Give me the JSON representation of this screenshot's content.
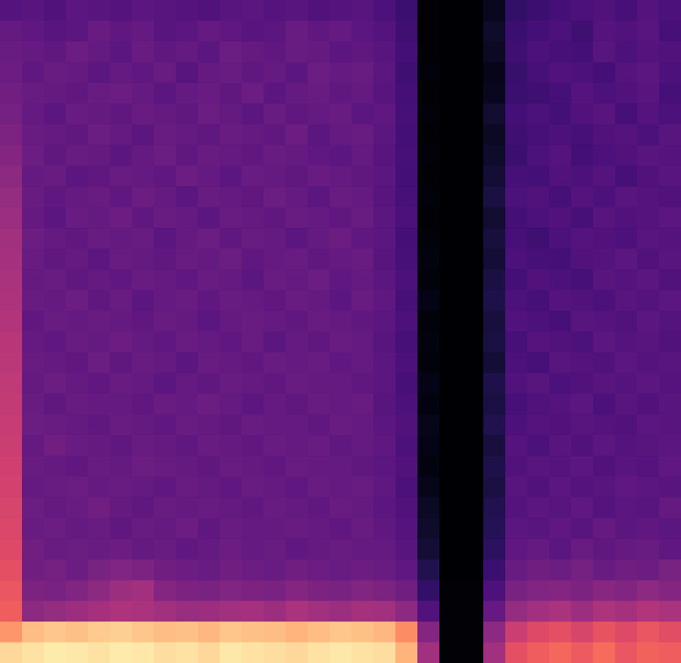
{
  "chart_data": {
    "type": "heatmap",
    "tick_labels": false,
    "color_range": [
      0,
      100
    ],
    "cells": [
      [
        26,
        27,
        25,
        28,
        27,
        26,
        28,
        27,
        26,
        25,
        27,
        28,
        26,
        27,
        25,
        26,
        27,
        24,
        20,
        1,
        0,
        0,
        6,
        18,
        20,
        22,
        24,
        25,
        23,
        26,
        24
      ],
      [
        30,
        29,
        27,
        28,
        31,
        29,
        30,
        27,
        28,
        30,
        29,
        27,
        28,
        31,
        29,
        30,
        28,
        26,
        21,
        1,
        0,
        0,
        8,
        20,
        22,
        24,
        21,
        26,
        25,
        27,
        23
      ],
      [
        31,
        30,
        29,
        32,
        30,
        28,
        31,
        29,
        30,
        28,
        32,
        30,
        29,
        31,
        30,
        28,
        29,
        27,
        22,
        1,
        0,
        0,
        7,
        21,
        24,
        23,
        22,
        27,
        24,
        26,
        25
      ],
      [
        32,
        29,
        31,
        30,
        28,
        30,
        29,
        31,
        27,
        30,
        31,
        29,
        30,
        28,
        32,
        30,
        31,
        28,
        21,
        2,
        0,
        0,
        5,
        19,
        23,
        25,
        24,
        22,
        26,
        28,
        24
      ],
      [
        33,
        31,
        30,
        29,
        31,
        32,
        30,
        28,
        30,
        31,
        29,
        32,
        28,
        30,
        31,
        29,
        30,
        27,
        22,
        1,
        0,
        0,
        6,
        20,
        21,
        23,
        26,
        24,
        25,
        27,
        23
      ],
      [
        34,
        30,
        28,
        31,
        30,
        29,
        31,
        30,
        29,
        32,
        30,
        28,
        31,
        29,
        30,
        31,
        28,
        29,
        23,
        2,
        0,
        0,
        9,
        22,
        24,
        22,
        25,
        27,
        23,
        26,
        24
      ],
      [
        36,
        31,
        30,
        29,
        32,
        30,
        28,
        31,
        30,
        29,
        31,
        30,
        29,
        32,
        28,
        30,
        31,
        28,
        22,
        1,
        0,
        0,
        7,
        21,
        23,
        24,
        23,
        25,
        26,
        24,
        27
      ],
      [
        38,
        32,
        29,
        31,
        30,
        28,
        30,
        32,
        29,
        31,
        30,
        29,
        31,
        30,
        29,
        28,
        30,
        27,
        23,
        2,
        0,
        0,
        8,
        20,
        24,
        26,
        22,
        24,
        25,
        27,
        26
      ],
      [
        40,
        30,
        31,
        28,
        29,
        31,
        30,
        29,
        32,
        30,
        28,
        31,
        30,
        29,
        31,
        30,
        29,
        28,
        22,
        1,
        0,
        0,
        10,
        23,
        22,
        25,
        24,
        26,
        23,
        25,
        27
      ],
      [
        42,
        31,
        29,
        30,
        31,
        29,
        32,
        30,
        28,
        31,
        30,
        29,
        32,
        30,
        28,
        31,
        30,
        27,
        23,
        2,
        0,
        0,
        12,
        24,
        25,
        23,
        26,
        24,
        27,
        26,
        25
      ],
      [
        44,
        30,
        28,
        31,
        30,
        32,
        29,
        31,
        30,
        28,
        31,
        30,
        29,
        31,
        30,
        29,
        31,
        28,
        24,
        1,
        0,
        0,
        9,
        22,
        24,
        25,
        23,
        27,
        25,
        26,
        28
      ],
      [
        45,
        32,
        30,
        29,
        31,
        30,
        31,
        28,
        30,
        32,
        29,
        31,
        30,
        28,
        30,
        32,
        29,
        28,
        22,
        2,
        0,
        0,
        11,
        23,
        21,
        24,
        26,
        25,
        24,
        27,
        26
      ],
      [
        46,
        31,
        29,
        30,
        28,
        31,
        30,
        29,
        31,
        30,
        32,
        29,
        30,
        31,
        29,
        30,
        31,
        27,
        23,
        3,
        0,
        0,
        10,
        24,
        23,
        22,
        25,
        26,
        28,
        25,
        27
      ],
      [
        47,
        30,
        31,
        29,
        30,
        29,
        31,
        30,
        29,
        31,
        30,
        28,
        31,
        30,
        32,
        29,
        30,
        28,
        24,
        2,
        0,
        0,
        12,
        22,
        25,
        24,
        23,
        27,
        26,
        28,
        25
      ],
      [
        48,
        31,
        30,
        32,
        29,
        31,
        28,
        30,
        31,
        29,
        31,
        30,
        29,
        31,
        30,
        28,
        31,
        29,
        23,
        4,
        0,
        0,
        13,
        24,
        23,
        26,
        25,
        24,
        27,
        26,
        28
      ],
      [
        49,
        29,
        31,
        30,
        31,
        30,
        29,
        31,
        30,
        28,
        30,
        31,
        30,
        29,
        31,
        30,
        29,
        28,
        24,
        2,
        0,
        0,
        11,
        25,
        24,
        23,
        27,
        26,
        25,
        28,
        26
      ],
      [
        50,
        30,
        29,
        31,
        30,
        32,
        30,
        29,
        31,
        30,
        29,
        31,
        28,
        30,
        29,
        31,
        30,
        27,
        23,
        3,
        0,
        0,
        12,
        23,
        26,
        25,
        24,
        28,
        26,
        27,
        25
      ],
      [
        51,
        31,
        30,
        29,
        32,
        29,
        31,
        30,
        28,
        31,
        30,
        29,
        31,
        30,
        31,
        29,
        30,
        28,
        24,
        2,
        0,
        0,
        10,
        24,
        23,
        27,
        26,
        25,
        28,
        26,
        27
      ],
      [
        52,
        30,
        32,
        30,
        29,
        31,
        30,
        28,
        30,
        29,
        31,
        30,
        29,
        31,
        30,
        30,
        29,
        28,
        23,
        4,
        0,
        0,
        13,
        25,
        27,
        24,
        25,
        27,
        26,
        28,
        26
      ],
      [
        53,
        31,
        29,
        31,
        30,
        30,
        29,
        31,
        30,
        32,
        30,
        28,
        30,
        29,
        31,
        30,
        31,
        27,
        24,
        3,
        0,
        0,
        12,
        23,
        25,
        26,
        28,
        24,
        27,
        25,
        27
      ],
      [
        54,
        32,
        31,
        30,
        29,
        31,
        30,
        29,
        31,
        30,
        29,
        31,
        30,
        30,
        29,
        31,
        30,
        28,
        25,
        5,
        0,
        0,
        14,
        24,
        26,
        25,
        27,
        26,
        25,
        28,
        27
      ],
      [
        55,
        30,
        33,
        31,
        30,
        29,
        31,
        30,
        29,
        31,
        30,
        29,
        31,
        30,
        31,
        29,
        30,
        29,
        24,
        4,
        0,
        0,
        11,
        26,
        24,
        27,
        25,
        28,
        26,
        27,
        28
      ],
      [
        56,
        31,
        30,
        29,
        31,
        30,
        32,
        31,
        30,
        29,
        31,
        30,
        29,
        31,
        30,
        30,
        29,
        28,
        25,
        3,
        0,
        0,
        13,
        25,
        27,
        26,
        28,
        25,
        27,
        26,
        29
      ],
      [
        57,
        30,
        31,
        32,
        30,
        31,
        30,
        29,
        31,
        30,
        29,
        31,
        30,
        29,
        31,
        30,
        31,
        29,
        24,
        5,
        0,
        0,
        12,
        27,
        25,
        28,
        26,
        27,
        29,
        28,
        27
      ],
      [
        58,
        32,
        30,
        31,
        33,
        30,
        29,
        31,
        30,
        31,
        30,
        29,
        31,
        30,
        29,
        31,
        30,
        28,
        25,
        7,
        0,
        0,
        14,
        26,
        28,
        27,
        29,
        26,
        28,
        27,
        30
      ],
      [
        59,
        31,
        32,
        30,
        31,
        29,
        31,
        30,
        32,
        29,
        31,
        30,
        30,
        31,
        30,
        29,
        31,
        29,
        26,
        8,
        0,
        0,
        15,
        28,
        27,
        29,
        27,
        30,
        28,
        29,
        28
      ],
      [
        60,
        33,
        31,
        32,
        31,
        32,
        30,
        31,
        29,
        30,
        32,
        30,
        31,
        29,
        30,
        31,
        30,
        30,
        27,
        10,
        0,
        0,
        17,
        29,
        30,
        28,
        31,
        29,
        30,
        31,
        29
      ],
      [
        62,
        33,
        34,
        32,
        35,
        37,
        36,
        33,
        32,
        31,
        33,
        32,
        31,
        33,
        32,
        31,
        32,
        31,
        29,
        14,
        0,
        0,
        20,
        31,
        33,
        32,
        34,
        31,
        33,
        32,
        35
      ],
      [
        64,
        36,
        35,
        37,
        40,
        44,
        45,
        38,
        36,
        35,
        37,
        36,
        35,
        38,
        36,
        35,
        37,
        36,
        33,
        18,
        1,
        1,
        24,
        35,
        37,
        38,
        36,
        39,
        37,
        40,
        38
      ],
      [
        66,
        40,
        42,
        44,
        46,
        48,
        47,
        45,
        43,
        44,
        45,
        46,
        44,
        47,
        45,
        44,
        46,
        45,
        40,
        25,
        1,
        1,
        30,
        42,
        45,
        47,
        44,
        48,
        46,
        49,
        47
      ],
      [
        78,
        86,
        88,
        87,
        89,
        90,
        88,
        86,
        87,
        85,
        88,
        87,
        86,
        84,
        86,
        88,
        87,
        85,
        76,
        38,
        1,
        1,
        40,
        55,
        60,
        62,
        58,
        63,
        60,
        64,
        61
      ],
      [
        92,
        94,
        96,
        95,
        94,
        96,
        95,
        93,
        94,
        92,
        95,
        94,
        93,
        92,
        94,
        95,
        94,
        93,
        84,
        45,
        1,
        1,
        45,
        62,
        66,
        68,
        65,
        69,
        64,
        67,
        66
      ]
    ]
  }
}
